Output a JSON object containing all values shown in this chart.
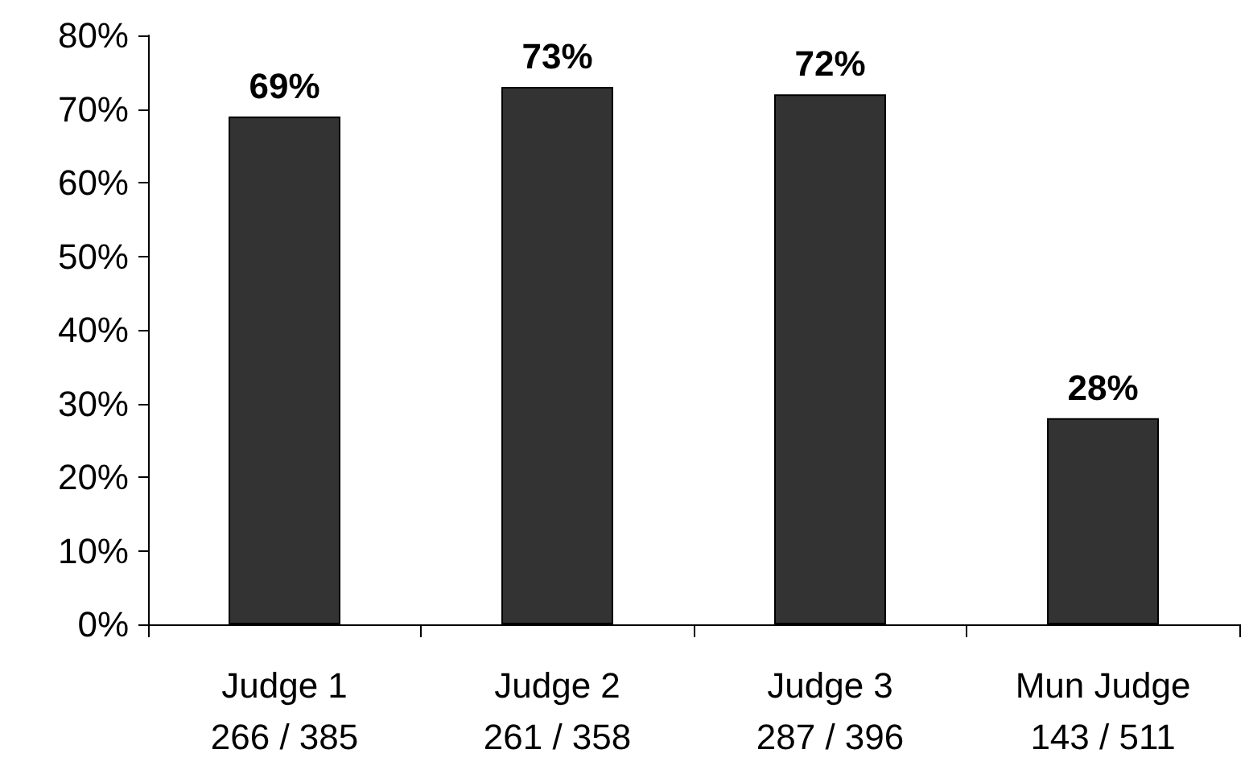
{
  "chart_data": {
    "type": "bar",
    "categories": [
      "Judge 1\n266 / 385",
      "Judge 2\n261 / 358",
      "Judge 3\n287 / 396",
      "Mun Judge\n143 / 511"
    ],
    "values": [
      69,
      73,
      72,
      28
    ],
    "value_labels": [
      "69%",
      "73%",
      "72%",
      "28%"
    ],
    "color": "#333333",
    "ylim": [
      0,
      80
    ],
    "yticks": [
      {
        "value": 0,
        "label": "0%"
      },
      {
        "value": 10,
        "label": "10%"
      },
      {
        "value": 20,
        "label": "20%"
      },
      {
        "value": 30,
        "label": "30%"
      },
      {
        "value": 40,
        "label": "40%"
      },
      {
        "value": 50,
        "label": "50%"
      },
      {
        "value": 60,
        "label": "60%"
      },
      {
        "value": 70,
        "label": "70%"
      },
      {
        "value": 80,
        "label": "80%"
      }
    ],
    "grid": false
  }
}
